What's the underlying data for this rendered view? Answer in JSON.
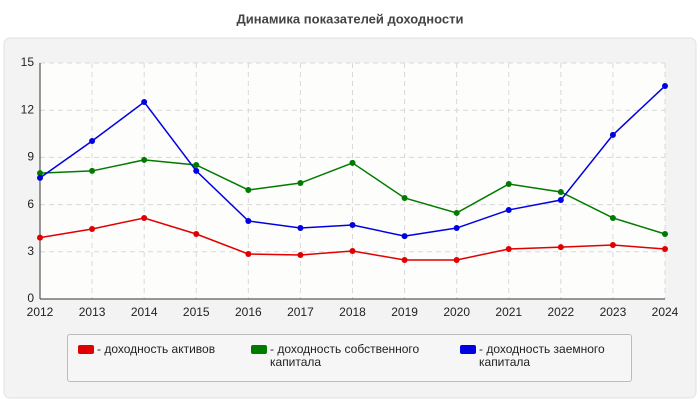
{
  "chart_data": {
    "type": "line",
    "title": "Динамика показателей доходности",
    "categories": [
      "2012",
      "2013",
      "2014",
      "2015",
      "2016",
      "2017",
      "2018",
      "2019",
      "2020",
      "2021",
      "2022",
      "2023",
      "2024"
    ],
    "series": [
      {
        "name": "- доходность активов",
        "color": "#e00000",
        "values": [
          3.9,
          4.45,
          5.15,
          4.13,
          2.86,
          2.8,
          3.05,
          2.48,
          2.48,
          3.18,
          3.3,
          3.43,
          3.18
        ]
      },
      {
        "name": "- доходность собственного капитала",
        "color": "#007a00",
        "values": [
          8.0,
          8.14,
          8.84,
          8.52,
          6.93,
          7.37,
          8.65,
          6.42,
          5.47,
          7.31,
          6.8,
          5.15,
          4.13
        ]
      },
      {
        "name": "- доходность заемного капитала",
        "color": "#0000e0",
        "values": [
          7.7,
          10.04,
          12.52,
          8.14,
          4.96,
          4.51,
          4.7,
          4.0,
          4.51,
          5.66,
          6.29,
          10.43,
          13.54
        ]
      }
    ],
    "ylim": [
      0,
      15
    ],
    "yticks": [
      0,
      3,
      6,
      9,
      12,
      15
    ],
    "grid": true
  }
}
